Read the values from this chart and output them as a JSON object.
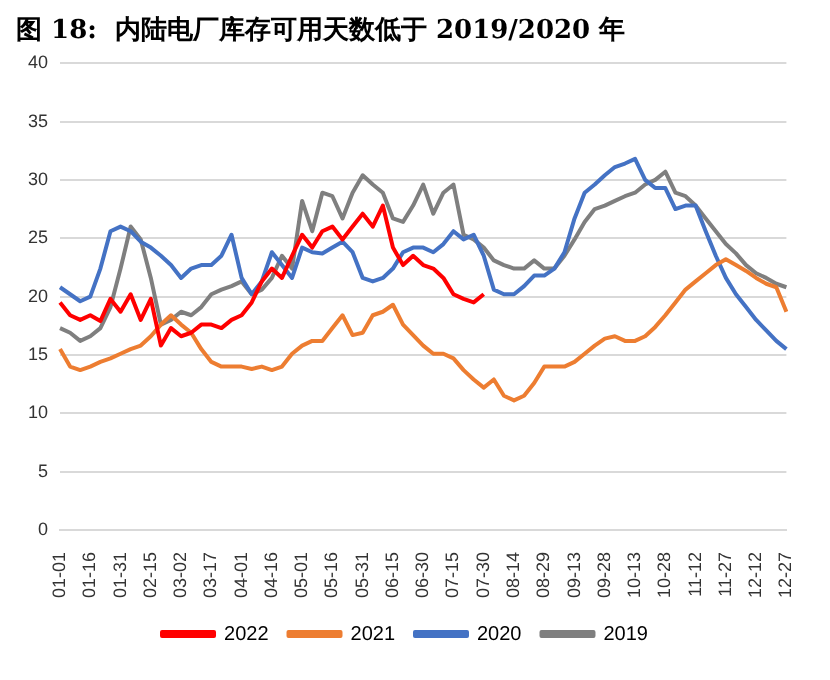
{
  "chart_data": {
    "type": "line",
    "title": "图 18:  内陆电厂库存可用天数低于 2019/2020 年",
    "categories": [
      "01-01",
      null,
      null,
      "01-16",
      null,
      null,
      "01-31",
      null,
      null,
      "02-15",
      null,
      null,
      "03-02",
      null,
      null,
      "03-17",
      null,
      null,
      "04-01",
      null,
      null,
      "04-16",
      null,
      null,
      "05-01",
      null,
      null,
      "05-16",
      null,
      null,
      "05-31",
      null,
      null,
      "06-15",
      null,
      null,
      "06-30",
      null,
      null,
      "07-15",
      null,
      null,
      "07-30",
      null,
      null,
      "08-14",
      null,
      null,
      "08-29",
      null,
      null,
      "09-13",
      null,
      null,
      "09-28",
      null,
      null,
      "10-13",
      null,
      null,
      "10-28",
      null,
      null,
      "11-12",
      null,
      null,
      "11-27",
      null,
      null,
      "12-12",
      null,
      null,
      "12-27"
    ],
    "series": [
      {
        "name": "2022",
        "color": "#ff0000",
        "values": [
          19.5,
          18.4,
          18,
          18.4,
          17.9,
          19.8,
          18.7,
          20.2,
          18,
          19.8,
          15.8,
          17.3,
          16.6,
          16.9,
          17.6,
          17.6,
          17.3,
          18,
          18.4,
          19.5,
          21.3,
          22.4,
          21.6,
          23.5,
          25.3,
          24.2,
          25.6,
          26,
          24.9,
          26,
          27.1,
          26,
          27.8,
          24.2,
          22.7,
          23.5,
          22.7,
          22.4,
          21.6,
          20.2,
          19.8,
          19.5,
          20.2,
          null,
          null,
          null,
          null,
          null,
          null,
          null,
          null,
          null,
          null,
          null,
          null,
          null,
          null,
          null,
          null,
          null,
          null,
          null,
          null,
          null,
          null,
          null,
          null,
          null,
          null,
          null,
          null,
          null,
          null
        ]
      },
      {
        "name": "2021",
        "color": "#ed7d31",
        "values": [
          15.5,
          14,
          13.7,
          14,
          14.4,
          14.7,
          15.1,
          15.5,
          15.8,
          16.6,
          17.6,
          18.4,
          17.6,
          16.9,
          15.5,
          14.4,
          14,
          14,
          14,
          13.8,
          14,
          13.7,
          14,
          15.1,
          15.8,
          16.2,
          16.2,
          17.3,
          18.4,
          16.7,
          16.9,
          18.4,
          18.7,
          19.3,
          17.6,
          16.7,
          15.8,
          15.1,
          15.1,
          14.7,
          13.7,
          12.9,
          12.2,
          12.9,
          11.5,
          11.1,
          11.5,
          12.6,
          14,
          14,
          14,
          14.4,
          15.1,
          15.8,
          16.4,
          16.6,
          16.2,
          16.2,
          16.6,
          17.4,
          18.4,
          19.5,
          20.6,
          21.3,
          22,
          22.7,
          23.2,
          22.7,
          22.2,
          21.6,
          21.1,
          20.8,
          18.7
        ]
      },
      {
        "name": "2020",
        "color": "#4472c4",
        "values": [
          20.8,
          20.2,
          19.6,
          20,
          22.4,
          25.6,
          26,
          25.6,
          24.7,
          24.2,
          23.5,
          22.7,
          21.6,
          22.4,
          22.7,
          22.7,
          23.5,
          25.3,
          21.6,
          20.2,
          21.3,
          23.8,
          22.7,
          21.6,
          24.2,
          23.8,
          23.7,
          24.2,
          24.7,
          23.8,
          21.6,
          21.3,
          21.6,
          22.4,
          23.8,
          24.2,
          24.2,
          23.8,
          24.5,
          25.6,
          24.9,
          25.3,
          23.5,
          20.6,
          20.2,
          20.2,
          20.9,
          21.8,
          21.8,
          22.4,
          23.8,
          26.7,
          28.9,
          29.6,
          30.4,
          31.1,
          31.4,
          31.8,
          30,
          29.3,
          29.3,
          27.5,
          27.8,
          27.8,
          25.6,
          23.5,
          21.6,
          20.2,
          19.1,
          18,
          17.1,
          16.2,
          15.5
        ]
      },
      {
        "name": "2019",
        "color": "#7f7f7f",
        "values": [
          17.3,
          16.9,
          16.2,
          16.6,
          17.3,
          19.1,
          22.4,
          26,
          24.9,
          21.6,
          17.6,
          18,
          18.7,
          18.4,
          19.1,
          20.2,
          20.6,
          20.9,
          21.3,
          20.2,
          20.6,
          21.6,
          23.5,
          22.4,
          28.2,
          25.6,
          28.9,
          28.6,
          26.7,
          28.9,
          30.4,
          29.6,
          28.9,
          26.7,
          26.4,
          27.8,
          29.6,
          27.1,
          28.9,
          29.6,
          25.3,
          24.9,
          24.2,
          23.1,
          22.7,
          22.4,
          22.4,
          23.1,
          22.4,
          22.4,
          23.5,
          24.9,
          26.4,
          27.5,
          27.8,
          28.2,
          28.6,
          28.9,
          29.6,
          30,
          30.7,
          28.9,
          28.6,
          27.8,
          26.7,
          25.6,
          24.5,
          23.7,
          22.7,
          22,
          21.6,
          21.1,
          20.8
        ]
      }
    ],
    "ylim": [
      0,
      40
    ],
    "yticks": [
      0,
      5,
      10,
      15,
      20,
      25,
      30,
      35,
      40
    ],
    "grid": "y",
    "legend": "bottom",
    "marker": "none",
    "line_style": "solid"
  }
}
